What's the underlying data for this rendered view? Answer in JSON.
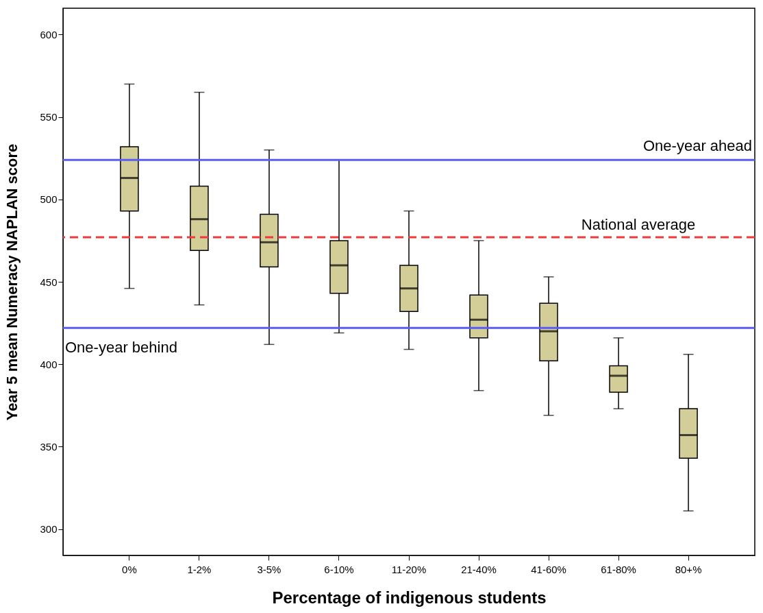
{
  "chart_data": {
    "type": "box",
    "xlabel": "Percentage of indigenous students",
    "ylabel": "Year 5 mean Numeracy NAPLAN score",
    "categories": [
      "0%",
      "1-2%",
      "3-5%",
      "6-10%",
      "11-20%",
      "21-40%",
      "41-60%",
      "61-80%",
      "80+%"
    ],
    "series": [
      {
        "color": "#d3cd98",
        "boxes": [
          {
            "low": 446,
            "q1": 493,
            "median": 513,
            "q3": 532,
            "high": 570
          },
          {
            "low": 436,
            "q1": 469,
            "median": 488,
            "q3": 508,
            "high": 565
          },
          {
            "low": 412,
            "q1": 459,
            "median": 474,
            "q3": 491,
            "high": 530
          },
          {
            "low": 419,
            "q1": 443,
            "median": 460,
            "q3": 475,
            "high": 524
          },
          {
            "low": 409,
            "q1": 432,
            "median": 446,
            "q3": 460,
            "high": 493
          },
          {
            "low": 384,
            "q1": 416,
            "median": 427,
            "q3": 442,
            "high": 475
          },
          {
            "low": 369,
            "q1": 402,
            "median": 420,
            "q3": 437,
            "high": 453
          },
          {
            "low": 373,
            "q1": 383,
            "median": 393,
            "q3": 399,
            "high": 416
          },
          {
            "low": 311,
            "q1": 343,
            "median": 357,
            "q3": 373,
            "high": 406
          }
        ]
      }
    ],
    "ylim": [
      284,
      616
    ],
    "yticks": [
      300,
      350,
      400,
      450,
      500,
      550,
      600
    ],
    "ref_lines": [
      {
        "axis": "y",
        "value": 524,
        "label": "One-year ahead",
        "color": "#5b5bf5",
        "line_style": "solid"
      },
      {
        "axis": "y",
        "value": 477,
        "label": "National average",
        "color": "#ee3a3a",
        "line_style": "dashed"
      },
      {
        "axis": "y",
        "value": 422,
        "label": "One-year behind",
        "color": "#5b5bf5",
        "line_style": "solid"
      }
    ]
  }
}
